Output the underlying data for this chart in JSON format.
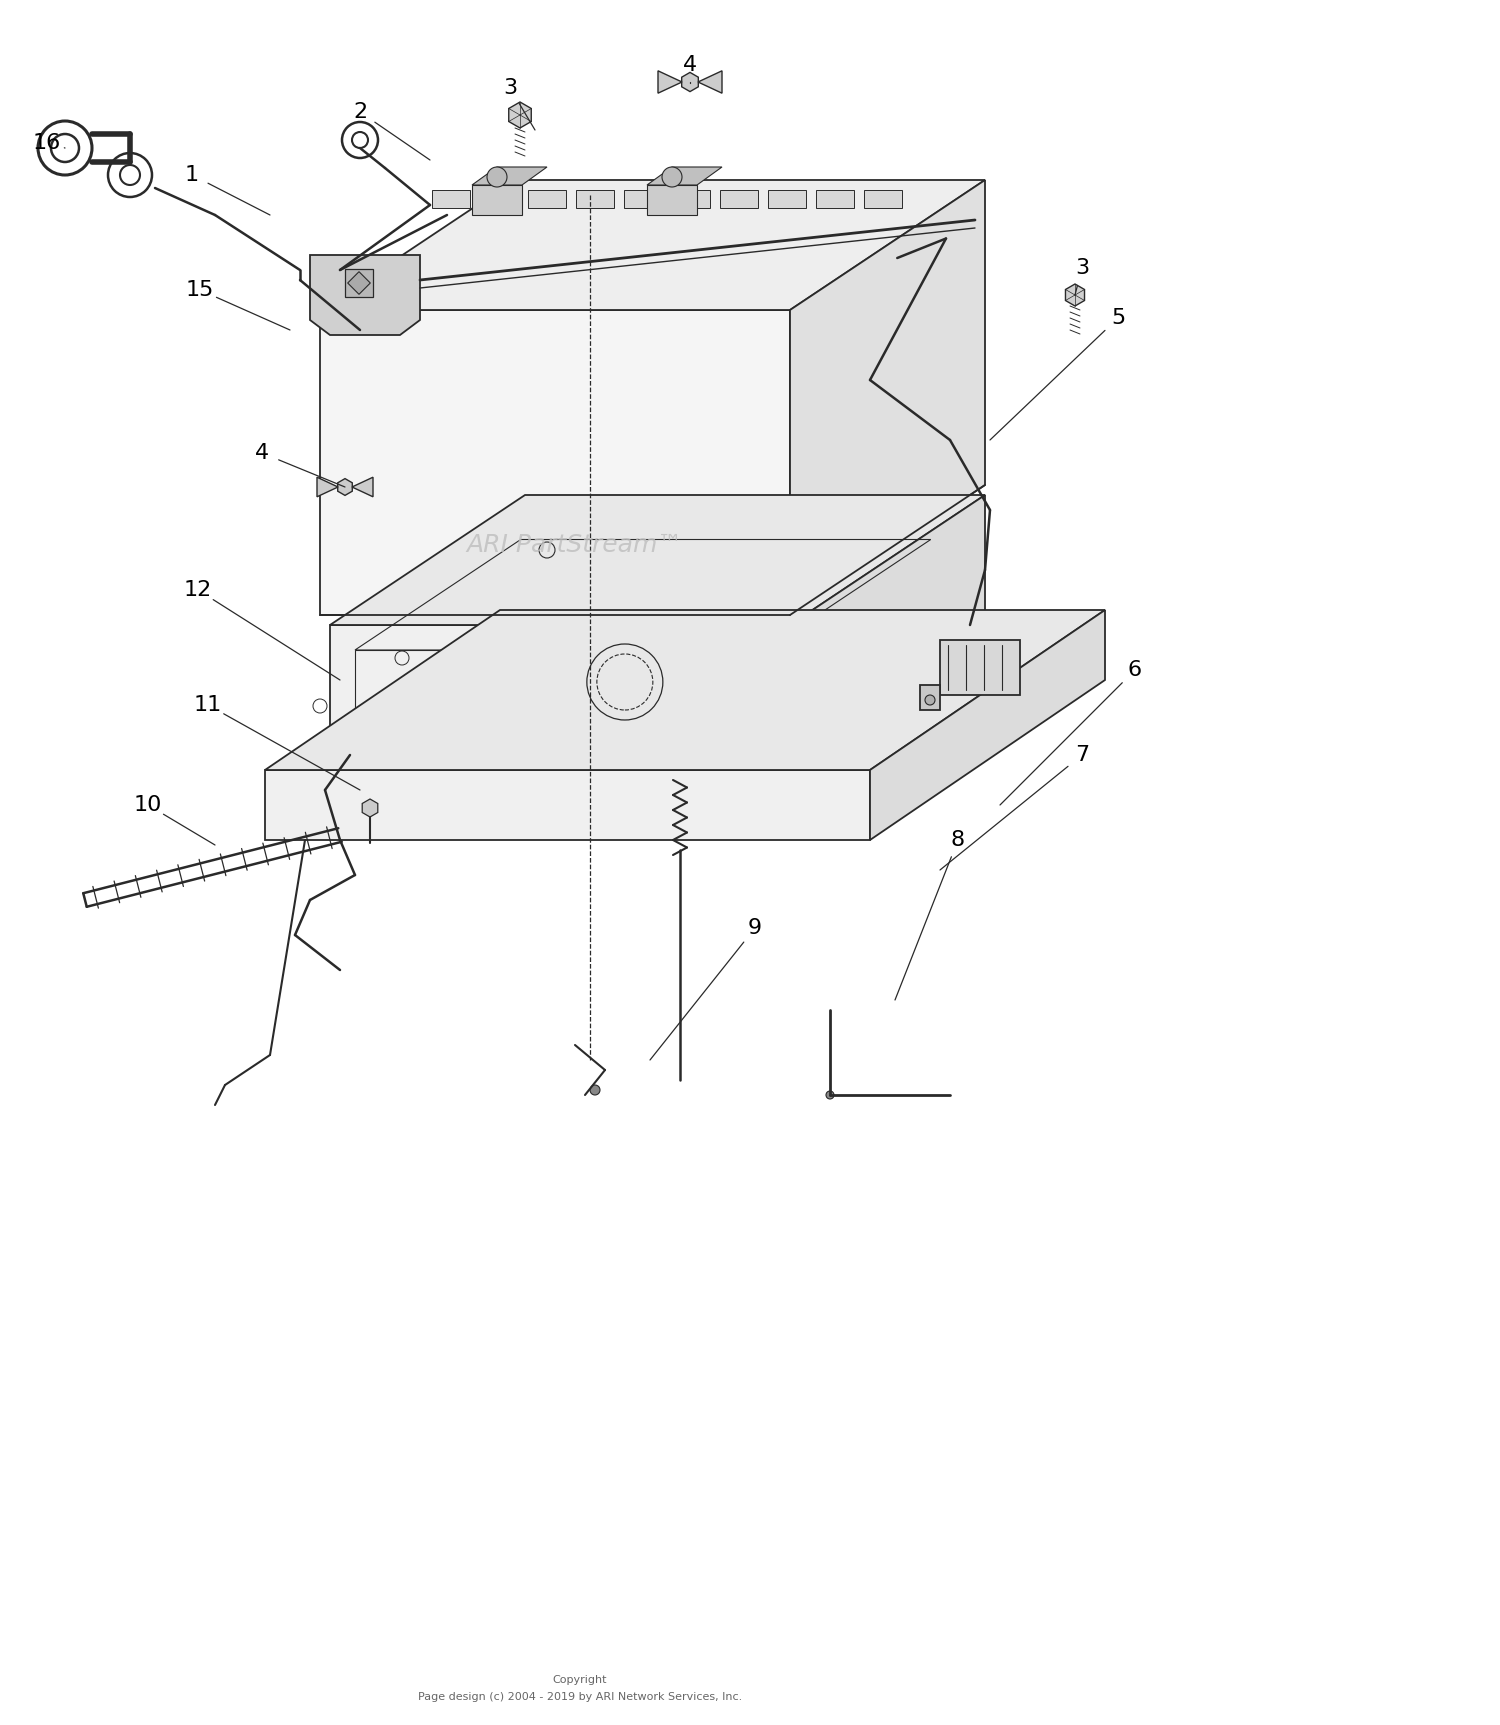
{
  "background_color": "#ffffff",
  "line_color": "#2a2a2a",
  "label_color": "#000000",
  "watermark_color": "#c0c0c0",
  "watermark_text": "ARI PartStream™",
  "copyright_line1": "Copyright",
  "copyright_line2": "Page design (c) 2004 - 2019 by ARI Network Services, Inc.",
  "label_fontsize": 16,
  "watermark_fontsize": 18,
  "copyright_fontsize": 8,
  "figsize": [
    15.0,
    17.25
  ],
  "dpi": 100
}
